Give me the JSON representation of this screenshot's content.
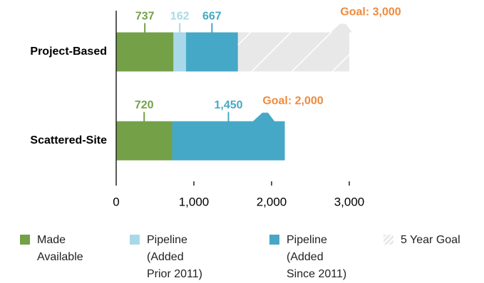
{
  "chart_data": {
    "type": "stacked-bar-horizontal",
    "categories": [
      "Project-Based",
      "Scattered-Site"
    ],
    "series": [
      {
        "name": "Made Available",
        "color": "#74a047",
        "values": [
          737,
          720
        ]
      },
      {
        "name": "Pipeline (Added Prior 2011)",
        "color": "#a9d9e8",
        "values": [
          162,
          null
        ]
      },
      {
        "name": "Pipeline (Added Since 2011)",
        "color": "#45a8c6",
        "values": [
          667,
          1450
        ],
        "value_labels": [
          "667",
          "1,450"
        ]
      }
    ],
    "goal": {
      "name": "5 Year Goal",
      "color": "#e8e8e8",
      "label_color": "#f08a3c",
      "values": [
        3000,
        2000
      ],
      "value_labels": [
        "Goal: 3,000",
        "Goal: 2,000"
      ]
    },
    "xlim": [
      0,
      3000
    ],
    "xticks": [
      0,
      {
        "value": 1000,
        "label": "1,000"
      },
      {
        "value": 2000,
        "label": "2,000"
      },
      {
        "value": 3000,
        "label": "3,000"
      }
    ]
  }
}
